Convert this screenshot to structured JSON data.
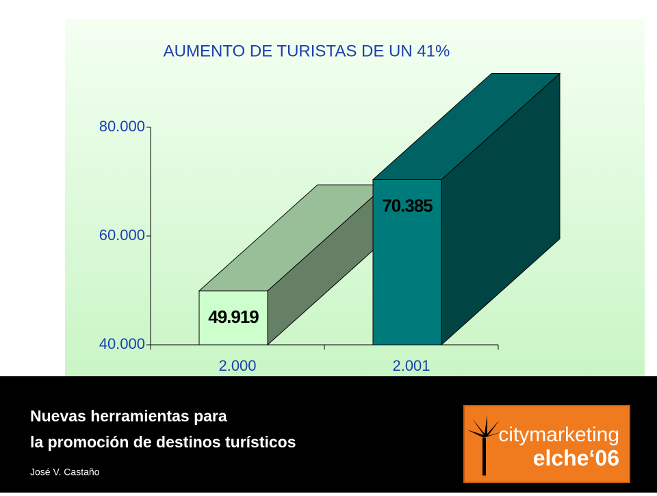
{
  "chart_data": {
    "type": "bar",
    "title": "AUMENTO DE TURISTAS DE UN 41%",
    "categories": [
      "2.000",
      "2.001"
    ],
    "values": [
      49919,
      70385
    ],
    "value_labels": [
      "49.919",
      "70.385"
    ],
    "colors": [
      "#ccffcc",
      "#007b7b"
    ],
    "ylim": [
      40000,
      80000
    ],
    "yticks": [
      {
        "value": 40000,
        "label": "40.000"
      },
      {
        "value": 60000,
        "label": "60.000"
      },
      {
        "value": 80000,
        "label": "80.000"
      }
    ]
  },
  "footer": {
    "line1": "Nuevas herramientas para",
    "line2": "la promoción de destinos turísticos",
    "author": "José V. Castaño"
  },
  "logo": {
    "line1": "citymarketing",
    "line2": "elche‘06"
  }
}
